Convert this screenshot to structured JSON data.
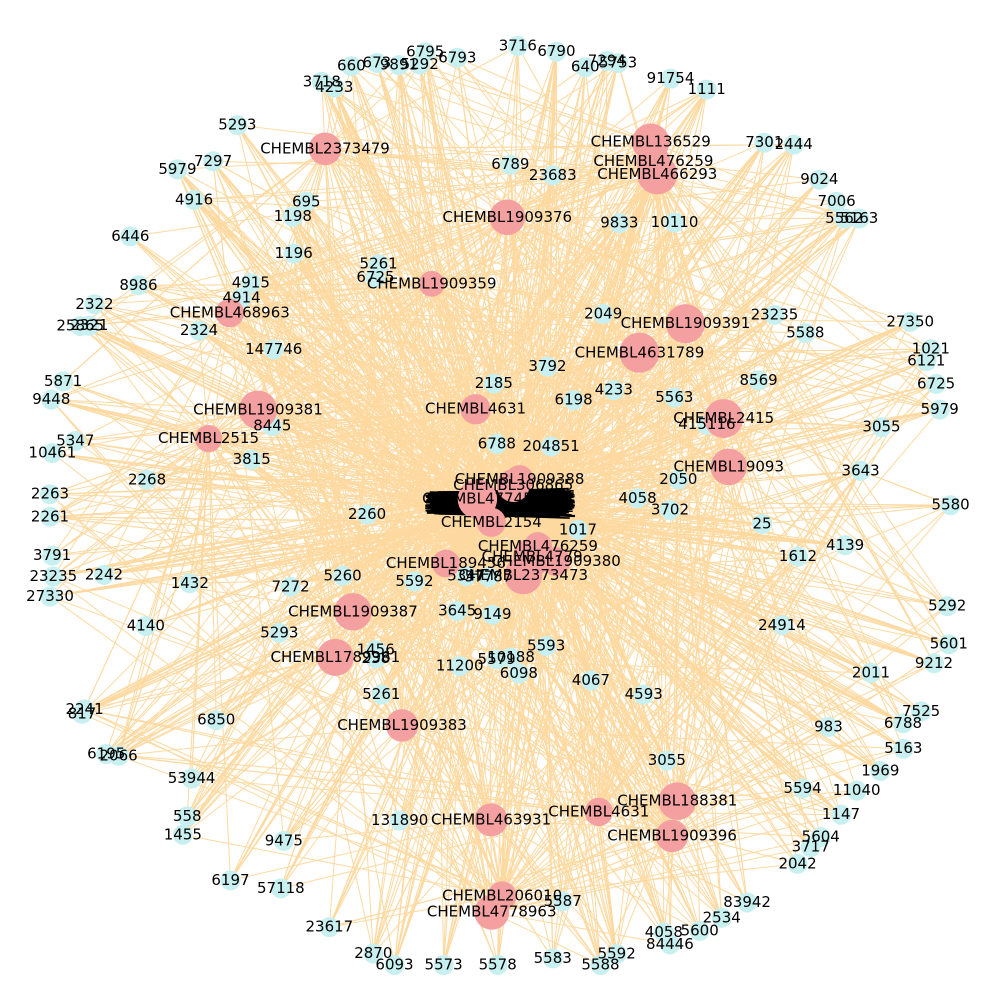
{
  "colors": {
    "background": "#ffffff",
    "edge": "#fdd9a0",
    "compound_node": "#f4a0a0",
    "target_node": "#c8f0f0",
    "label": "#000000"
  },
  "graph": {
    "compounds": [
      "CHEMBL1909396",
      "CHEMBL206010",
      "CHEMBL1909383",
      "CHEMBL4778963",
      "CHEMBL2373479",
      "CHEMBL466293",
      "CHEMBL19093",
      "CHEMBL4631",
      "CHEMBL188381",
      "CHEMBL476259",
      "CHEMBL306865",
      "CHEMBL2373473",
      "CHEMBL136529",
      "CHEMBL4631789",
      "CHEMBL1909381",
      "CHEMBL2515",
      "CHEMBL1789961",
      "CHEMBL1909359",
      "CHEMBL463931",
      "CHEMBL2415",
      "CHEMBL468963",
      "CHEMBL47745",
      "CHEMBL1909380",
      "CHEMBL1909391",
      "CHEMBL2154",
      "CHEMBL4779",
      "CHEMBL189456",
      "CHEMBL1909387",
      "CHEMBL1909388",
      "CHEMBL476259",
      "CHEMBL4631",
      "CHEMBL1909376"
    ],
    "targets": [
      "3702",
      "25",
      "4139",
      "1612",
      "5292",
      "1017",
      "5601",
      "9212",
      "24914",
      "2011",
      "7525",
      "6788",
      "5163",
      "983",
      "1969",
      "11040",
      "1147",
      "5594",
      "5604",
      "3717",
      "2042",
      "4593",
      "3055",
      "83942",
      "2534",
      "4067",
      "5600",
      "84446",
      "4058",
      "5593",
      "5592",
      "5588",
      "5587",
      "6098",
      "5583",
      "10188",
      "5578",
      "5579",
      "9149",
      "5573",
      "57787",
      "6093",
      "11200",
      "2870",
      "131890",
      "23617",
      "3645",
      "5347",
      "57118",
      "5261",
      "9475",
      "6197",
      "238",
      "1456",
      "1455",
      "558",
      "53944",
      "5592",
      "6850",
      "2066",
      "6195",
      "5293",
      "817",
      "2241",
      "5260",
      "7272",
      "4140",
      "1432",
      "27330",
      "2242",
      "23235",
      "3791",
      "2260",
      "2261",
      "2263",
      "2268",
      "10461",
      "5347",
      "3815",
      "9448",
      "5871",
      "8445",
      "25865",
      "2321",
      "2322",
      "2324",
      "8986",
      "147746",
      "6446",
      "4914",
      "4915",
      "4916",
      "5979",
      "7297",
      "1196",
      "1198",
      "5293",
      "695",
      "6725",
      "5261",
      "3718",
      "4233",
      "660",
      "673",
      "9891",
      "5292",
      "6795",
      "6793",
      "2185",
      "6788",
      "6789",
      "3716",
      "6790",
      "23683",
      "640",
      "7294",
      "5753",
      "3792",
      "91754",
      "9833",
      "1111",
      "2049",
      "10110",
      "6198",
      "7301",
      "204851",
      "2444",
      "4233",
      "9024",
      "7006",
      "5562",
      "5163",
      "23235",
      "5563",
      "5588",
      "8569",
      "27350",
      "415116",
      "1021",
      "6121",
      "6725",
      "5979",
      "3055",
      "2050",
      "3643",
      "4058",
      "5580"
    ]
  }
}
